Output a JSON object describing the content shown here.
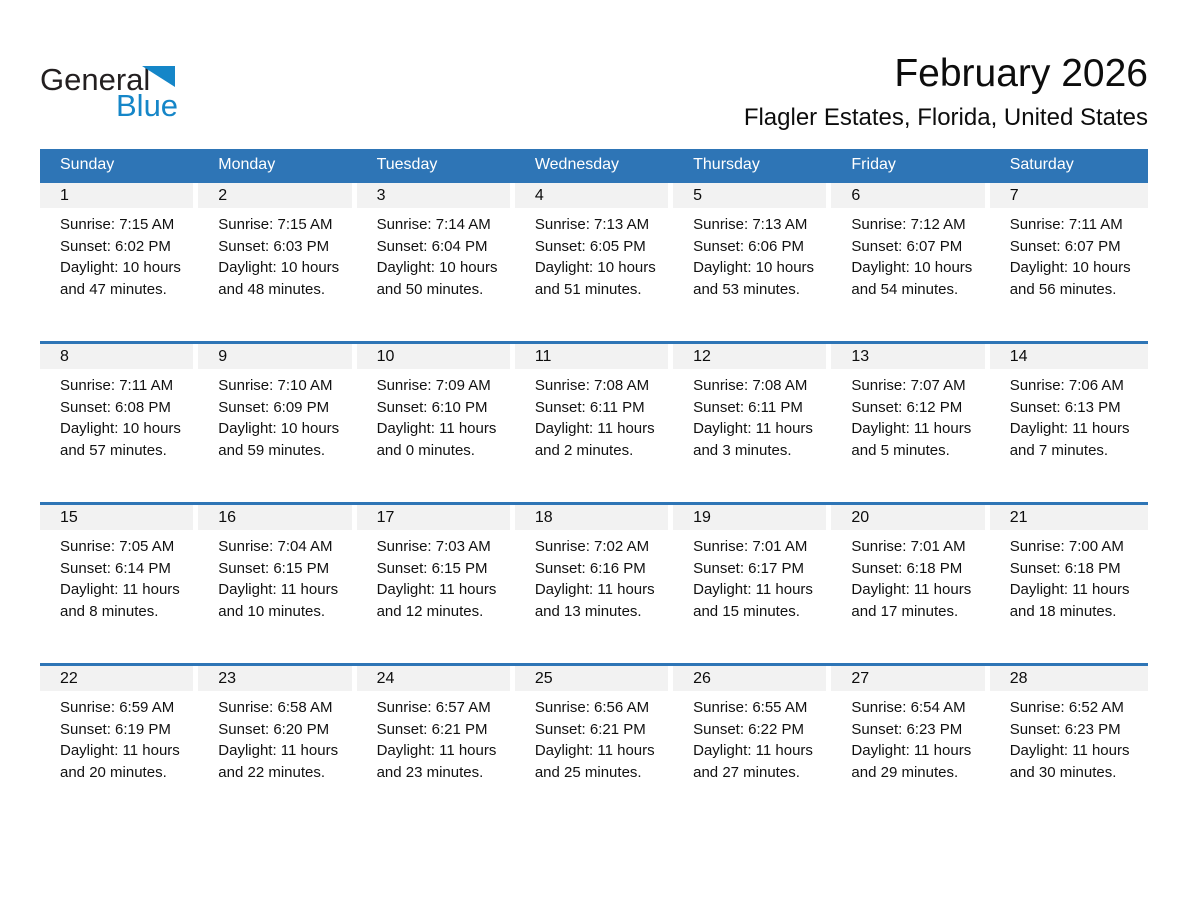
{
  "logo": {
    "general": "General",
    "blue": "Blue",
    "brand_blue": "#1586c8"
  },
  "header": {
    "title": "February 2026",
    "subtitle": "Flagler Estates, Florida, United States"
  },
  "colors": {
    "header_bar_blue": "#2e75b6",
    "week_divider_blue": "#2e75b6",
    "day_band_gray": "#f2f2f2"
  },
  "calendar": {
    "weekdays": [
      "Sunday",
      "Monday",
      "Tuesday",
      "Wednesday",
      "Thursday",
      "Friday",
      "Saturday"
    ],
    "weeks": [
      [
        {
          "num": "1",
          "sunrise": "Sunrise: 7:15 AM",
          "sunset": "Sunset: 6:02 PM",
          "daylight1": "Daylight: 10 hours",
          "daylight2": "and 47 minutes."
        },
        {
          "num": "2",
          "sunrise": "Sunrise: 7:15 AM",
          "sunset": "Sunset: 6:03 PM",
          "daylight1": "Daylight: 10 hours",
          "daylight2": "and 48 minutes."
        },
        {
          "num": "3",
          "sunrise": "Sunrise: 7:14 AM",
          "sunset": "Sunset: 6:04 PM",
          "daylight1": "Daylight: 10 hours",
          "daylight2": "and 50 minutes."
        },
        {
          "num": "4",
          "sunrise": "Sunrise: 7:13 AM",
          "sunset": "Sunset: 6:05 PM",
          "daylight1": "Daylight: 10 hours",
          "daylight2": "and 51 minutes."
        },
        {
          "num": "5",
          "sunrise": "Sunrise: 7:13 AM",
          "sunset": "Sunset: 6:06 PM",
          "daylight1": "Daylight: 10 hours",
          "daylight2": "and 53 minutes."
        },
        {
          "num": "6",
          "sunrise": "Sunrise: 7:12 AM",
          "sunset": "Sunset: 6:07 PM",
          "daylight1": "Daylight: 10 hours",
          "daylight2": "and 54 minutes."
        },
        {
          "num": "7",
          "sunrise": "Sunrise: 7:11 AM",
          "sunset": "Sunset: 6:07 PM",
          "daylight1": "Daylight: 10 hours",
          "daylight2": "and 56 minutes."
        }
      ],
      [
        {
          "num": "8",
          "sunrise": "Sunrise: 7:11 AM",
          "sunset": "Sunset: 6:08 PM",
          "daylight1": "Daylight: 10 hours",
          "daylight2": "and 57 minutes."
        },
        {
          "num": "9",
          "sunrise": "Sunrise: 7:10 AM",
          "sunset": "Sunset: 6:09 PM",
          "daylight1": "Daylight: 10 hours",
          "daylight2": "and 59 minutes."
        },
        {
          "num": "10",
          "sunrise": "Sunrise: 7:09 AM",
          "sunset": "Sunset: 6:10 PM",
          "daylight1": "Daylight: 11 hours",
          "daylight2": "and 0 minutes."
        },
        {
          "num": "11",
          "sunrise": "Sunrise: 7:08 AM",
          "sunset": "Sunset: 6:11 PM",
          "daylight1": "Daylight: 11 hours",
          "daylight2": "and 2 minutes."
        },
        {
          "num": "12",
          "sunrise": "Sunrise: 7:08 AM",
          "sunset": "Sunset: 6:11 PM",
          "daylight1": "Daylight: 11 hours",
          "daylight2": "and 3 minutes."
        },
        {
          "num": "13",
          "sunrise": "Sunrise: 7:07 AM",
          "sunset": "Sunset: 6:12 PM",
          "daylight1": "Daylight: 11 hours",
          "daylight2": "and 5 minutes."
        },
        {
          "num": "14",
          "sunrise": "Sunrise: 7:06 AM",
          "sunset": "Sunset: 6:13 PM",
          "daylight1": "Daylight: 11 hours",
          "daylight2": "and 7 minutes."
        }
      ],
      [
        {
          "num": "15",
          "sunrise": "Sunrise: 7:05 AM",
          "sunset": "Sunset: 6:14 PM",
          "daylight1": "Daylight: 11 hours",
          "daylight2": "and 8 minutes."
        },
        {
          "num": "16",
          "sunrise": "Sunrise: 7:04 AM",
          "sunset": "Sunset: 6:15 PM",
          "daylight1": "Daylight: 11 hours",
          "daylight2": "and 10 minutes."
        },
        {
          "num": "17",
          "sunrise": "Sunrise: 7:03 AM",
          "sunset": "Sunset: 6:15 PM",
          "daylight1": "Daylight: 11 hours",
          "daylight2": "and 12 minutes."
        },
        {
          "num": "18",
          "sunrise": "Sunrise: 7:02 AM",
          "sunset": "Sunset: 6:16 PM",
          "daylight1": "Daylight: 11 hours",
          "daylight2": "and 13 minutes."
        },
        {
          "num": "19",
          "sunrise": "Sunrise: 7:01 AM",
          "sunset": "Sunset: 6:17 PM",
          "daylight1": "Daylight: 11 hours",
          "daylight2": "and 15 minutes."
        },
        {
          "num": "20",
          "sunrise": "Sunrise: 7:01 AM",
          "sunset": "Sunset: 6:18 PM",
          "daylight1": "Daylight: 11 hours",
          "daylight2": "and 17 minutes."
        },
        {
          "num": "21",
          "sunrise": "Sunrise: 7:00 AM",
          "sunset": "Sunset: 6:18 PM",
          "daylight1": "Daylight: 11 hours",
          "daylight2": "and 18 minutes."
        }
      ],
      [
        {
          "num": "22",
          "sunrise": "Sunrise: 6:59 AM",
          "sunset": "Sunset: 6:19 PM",
          "daylight1": "Daylight: 11 hours",
          "daylight2": "and 20 minutes."
        },
        {
          "num": "23",
          "sunrise": "Sunrise: 6:58 AM",
          "sunset": "Sunset: 6:20 PM",
          "daylight1": "Daylight: 11 hours",
          "daylight2": "and 22 minutes."
        },
        {
          "num": "24",
          "sunrise": "Sunrise: 6:57 AM",
          "sunset": "Sunset: 6:21 PM",
          "daylight1": "Daylight: 11 hours",
          "daylight2": "and 23 minutes."
        },
        {
          "num": "25",
          "sunrise": "Sunrise: 6:56 AM",
          "sunset": "Sunset: 6:21 PM",
          "daylight1": "Daylight: 11 hours",
          "daylight2": "and 25 minutes."
        },
        {
          "num": "26",
          "sunrise": "Sunrise: 6:55 AM",
          "sunset": "Sunset: 6:22 PM",
          "daylight1": "Daylight: 11 hours",
          "daylight2": "and 27 minutes."
        },
        {
          "num": "27",
          "sunrise": "Sunrise: 6:54 AM",
          "sunset": "Sunset: 6:23 PM",
          "daylight1": "Daylight: 11 hours",
          "daylight2": "and 29 minutes."
        },
        {
          "num": "28",
          "sunrise": "Sunrise: 6:52 AM",
          "sunset": "Sunset: 6:23 PM",
          "daylight1": "Daylight: 11 hours",
          "daylight2": "and 30 minutes."
        }
      ]
    ]
  }
}
